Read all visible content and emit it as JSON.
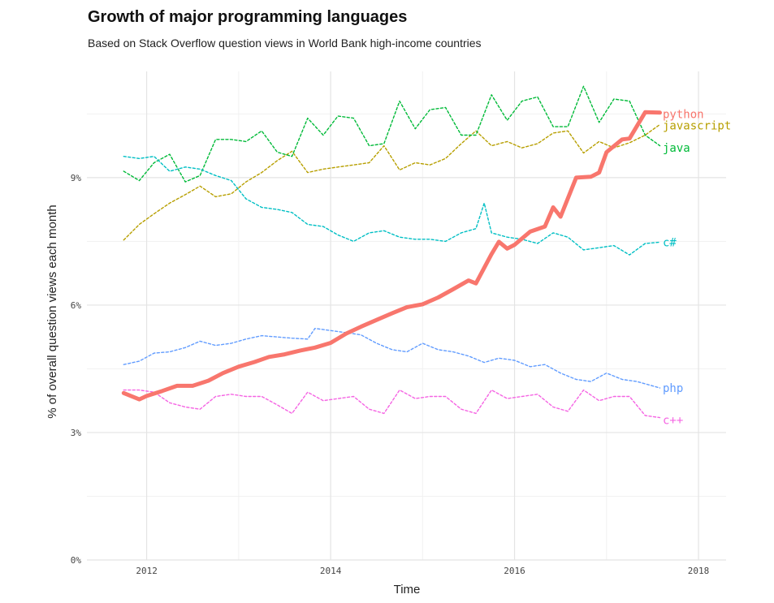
{
  "chart_data": {
    "type": "line",
    "title": "Growth of major programming languages",
    "subtitle": "Based on Stack Overflow question views in World Bank high-income countries",
    "xlabel": "Time",
    "ylabel": "% of overall question views each month",
    "xlim": [
      2011.35,
      2018.3
    ],
    "ylim": [
      0,
      0.115
    ],
    "x_ticks": [
      2012,
      2014,
      2016,
      2018
    ],
    "x_tick_labels": [
      "2012",
      "2014",
      "2016",
      "2018"
    ],
    "y_ticks": [
      0,
      0.03,
      0.06,
      0.09
    ],
    "y_tick_labels": [
      "0%",
      "3%",
      "6%",
      "9%"
    ],
    "grid": true,
    "legend": "direct labels at right end of lines",
    "series": [
      {
        "name": "python",
        "color": "#f8766d",
        "style": "solid-thick",
        "points": [
          [
            2011.75,
            0.0393
          ],
          [
            2011.92,
            0.0378
          ],
          [
            2012.0,
            0.0386
          ],
          [
            2012.17,
            0.0398
          ],
          [
            2012.33,
            0.041
          ],
          [
            2012.5,
            0.041
          ],
          [
            2012.67,
            0.0422
          ],
          [
            2012.83,
            0.044
          ],
          [
            2013.0,
            0.0455
          ],
          [
            2013.17,
            0.0466
          ],
          [
            2013.33,
            0.0478
          ],
          [
            2013.5,
            0.0484
          ],
          [
            2013.67,
            0.0493
          ],
          [
            2013.83,
            0.05
          ],
          [
            2014.0,
            0.0511
          ],
          [
            2014.17,
            0.0533
          ],
          [
            2014.33,
            0.0549
          ],
          [
            2014.5,
            0.0565
          ],
          [
            2014.67,
            0.0581
          ],
          [
            2014.83,
            0.0595
          ],
          [
            2015.0,
            0.0602
          ],
          [
            2015.17,
            0.0618
          ],
          [
            2015.33,
            0.0637
          ],
          [
            2015.5,
            0.0658
          ],
          [
            2015.58,
            0.0651
          ],
          [
            2015.75,
            0.072
          ],
          [
            2015.83,
            0.0749
          ],
          [
            2015.92,
            0.0733
          ],
          [
            2016.0,
            0.0742
          ],
          [
            2016.17,
            0.0773
          ],
          [
            2016.33,
            0.0785
          ],
          [
            2016.42,
            0.083
          ],
          [
            2016.5,
            0.0808
          ],
          [
            2016.67,
            0.09
          ],
          [
            2016.83,
            0.0902
          ],
          [
            2016.92,
            0.0912
          ],
          [
            2017.0,
            0.096
          ],
          [
            2017.17,
            0.099
          ],
          [
            2017.25,
            0.0992
          ],
          [
            2017.42,
            0.1054
          ],
          [
            2017.58,
            0.1053
          ]
        ]
      },
      {
        "name": "javascript",
        "color": "#b79f00",
        "style": "dashed",
        "points": [
          [
            2011.75,
            0.0753
          ],
          [
            2011.92,
            0.079
          ],
          [
            2012.08,
            0.0815
          ],
          [
            2012.25,
            0.084
          ],
          [
            2012.42,
            0.086
          ],
          [
            2012.58,
            0.088
          ],
          [
            2012.75,
            0.0855
          ],
          [
            2012.92,
            0.0862
          ],
          [
            2013.08,
            0.089
          ],
          [
            2013.25,
            0.0912
          ],
          [
            2013.42,
            0.094
          ],
          [
            2013.58,
            0.0962
          ],
          [
            2013.75,
            0.0912
          ],
          [
            2013.92,
            0.092
          ],
          [
            2014.08,
            0.0925
          ],
          [
            2014.25,
            0.093
          ],
          [
            2014.42,
            0.0935
          ],
          [
            2014.58,
            0.0975
          ],
          [
            2014.75,
            0.0918
          ],
          [
            2014.92,
            0.0935
          ],
          [
            2015.08,
            0.093
          ],
          [
            2015.25,
            0.0945
          ],
          [
            2015.42,
            0.098
          ],
          [
            2015.58,
            0.101
          ],
          [
            2015.75,
            0.0975
          ],
          [
            2015.92,
            0.0985
          ],
          [
            2016.08,
            0.097
          ],
          [
            2016.25,
            0.098
          ],
          [
            2016.42,
            0.1005
          ],
          [
            2016.58,
            0.101
          ],
          [
            2016.75,
            0.0958
          ],
          [
            2016.92,
            0.0985
          ],
          [
            2017.08,
            0.097
          ],
          [
            2017.25,
            0.0982
          ],
          [
            2017.42,
            0.1
          ],
          [
            2017.58,
            0.1025
          ]
        ]
      },
      {
        "name": "java",
        "color": "#00ba38",
        "style": "dashed",
        "points": [
          [
            2011.75,
            0.0915
          ],
          [
            2011.92,
            0.0893
          ],
          [
            2012.08,
            0.0935
          ],
          [
            2012.25,
            0.0955
          ],
          [
            2012.42,
            0.089
          ],
          [
            2012.58,
            0.0905
          ],
          [
            2012.75,
            0.099
          ],
          [
            2012.92,
            0.099
          ],
          [
            2013.08,
            0.0985
          ],
          [
            2013.25,
            0.101
          ],
          [
            2013.42,
            0.096
          ],
          [
            2013.58,
            0.095
          ],
          [
            2013.75,
            0.104
          ],
          [
            2013.92,
            0.1
          ],
          [
            2014.08,
            0.1045
          ],
          [
            2014.25,
            0.104
          ],
          [
            2014.42,
            0.0975
          ],
          [
            2014.58,
            0.098
          ],
          [
            2014.75,
            0.108
          ],
          [
            2014.92,
            0.1015
          ],
          [
            2015.08,
            0.106
          ],
          [
            2015.25,
            0.1065
          ],
          [
            2015.42,
            0.1
          ],
          [
            2015.58,
            0.1
          ],
          [
            2015.75,
            0.1095
          ],
          [
            2015.92,
            0.1035
          ],
          [
            2016.08,
            0.108
          ],
          [
            2016.25,
            0.109
          ],
          [
            2016.42,
            0.102
          ],
          [
            2016.58,
            0.102
          ],
          [
            2016.75,
            0.1115
          ],
          [
            2016.92,
            0.103
          ],
          [
            2017.08,
            0.1085
          ],
          [
            2017.25,
            0.108
          ],
          [
            2017.42,
            0.1
          ],
          [
            2017.58,
            0.0975
          ]
        ]
      },
      {
        "name": "c#",
        "color": "#00bfc4",
        "style": "dashed",
        "points": [
          [
            2011.75,
            0.095
          ],
          [
            2011.92,
            0.0945
          ],
          [
            2012.08,
            0.095
          ],
          [
            2012.25,
            0.0915
          ],
          [
            2012.42,
            0.0925
          ],
          [
            2012.58,
            0.092
          ],
          [
            2012.75,
            0.0905
          ],
          [
            2012.92,
            0.0893
          ],
          [
            2013.08,
            0.085
          ],
          [
            2013.25,
            0.083
          ],
          [
            2013.42,
            0.0825
          ],
          [
            2013.58,
            0.0818
          ],
          [
            2013.75,
            0.079
          ],
          [
            2013.92,
            0.0785
          ],
          [
            2014.08,
            0.0765
          ],
          [
            2014.25,
            0.075
          ],
          [
            2014.42,
            0.077
          ],
          [
            2014.58,
            0.0775
          ],
          [
            2014.75,
            0.076
          ],
          [
            2014.92,
            0.0755
          ],
          [
            2015.08,
            0.0755
          ],
          [
            2015.25,
            0.075
          ],
          [
            2015.42,
            0.077
          ],
          [
            2015.58,
            0.078
          ],
          [
            2015.67,
            0.084
          ],
          [
            2015.75,
            0.077
          ],
          [
            2015.92,
            0.076
          ],
          [
            2016.08,
            0.0755
          ],
          [
            2016.25,
            0.0745
          ],
          [
            2016.42,
            0.077
          ],
          [
            2016.58,
            0.076
          ],
          [
            2016.75,
            0.073
          ],
          [
            2016.92,
            0.0735
          ],
          [
            2017.08,
            0.074
          ],
          [
            2017.25,
            0.0718
          ],
          [
            2017.42,
            0.0745
          ],
          [
            2017.58,
            0.0748
          ]
        ]
      },
      {
        "name": "php",
        "color": "#619cff",
        "style": "dashed",
        "points": [
          [
            2011.75,
            0.046
          ],
          [
            2011.92,
            0.0468
          ],
          [
            2012.08,
            0.0487
          ],
          [
            2012.25,
            0.049
          ],
          [
            2012.42,
            0.05
          ],
          [
            2012.58,
            0.0515
          ],
          [
            2012.75,
            0.0505
          ],
          [
            2012.92,
            0.051
          ],
          [
            2013.08,
            0.052
          ],
          [
            2013.25,
            0.0528
          ],
          [
            2013.42,
            0.0525
          ],
          [
            2013.58,
            0.0522
          ],
          [
            2013.75,
            0.052
          ],
          [
            2013.83,
            0.0545
          ],
          [
            2014.0,
            0.054
          ],
          [
            2014.17,
            0.0535
          ],
          [
            2014.33,
            0.053
          ],
          [
            2014.5,
            0.051
          ],
          [
            2014.67,
            0.0495
          ],
          [
            2014.83,
            0.049
          ],
          [
            2015.0,
            0.051
          ],
          [
            2015.17,
            0.0495
          ],
          [
            2015.33,
            0.049
          ],
          [
            2015.5,
            0.048
          ],
          [
            2015.67,
            0.0465
          ],
          [
            2015.83,
            0.0475
          ],
          [
            2016.0,
            0.047
          ],
          [
            2016.17,
            0.0455
          ],
          [
            2016.33,
            0.046
          ],
          [
            2016.5,
            0.044
          ],
          [
            2016.67,
            0.0425
          ],
          [
            2016.83,
            0.042
          ],
          [
            2017.0,
            0.044
          ],
          [
            2017.17,
            0.0425
          ],
          [
            2017.33,
            0.042
          ],
          [
            2017.58,
            0.0405
          ]
        ]
      },
      {
        "name": "c++",
        "color": "#f564e3",
        "style": "dashed",
        "points": [
          [
            2011.75,
            0.04
          ],
          [
            2011.92,
            0.04
          ],
          [
            2012.08,
            0.0395
          ],
          [
            2012.25,
            0.037
          ],
          [
            2012.42,
            0.036
          ],
          [
            2012.58,
            0.0355
          ],
          [
            2012.75,
            0.0385
          ],
          [
            2012.92,
            0.039
          ],
          [
            2013.08,
            0.0385
          ],
          [
            2013.25,
            0.0385
          ],
          [
            2013.42,
            0.0365
          ],
          [
            2013.58,
            0.0345
          ],
          [
            2013.75,
            0.0395
          ],
          [
            2013.92,
            0.0375
          ],
          [
            2014.08,
            0.038
          ],
          [
            2014.25,
            0.0385
          ],
          [
            2014.42,
            0.0355
          ],
          [
            2014.58,
            0.0345
          ],
          [
            2014.75,
            0.04
          ],
          [
            2014.92,
            0.038
          ],
          [
            2015.08,
            0.0385
          ],
          [
            2015.25,
            0.0385
          ],
          [
            2015.42,
            0.0355
          ],
          [
            2015.58,
            0.0345
          ],
          [
            2015.75,
            0.04
          ],
          [
            2015.92,
            0.038
          ],
          [
            2016.08,
            0.0385
          ],
          [
            2016.25,
            0.039
          ],
          [
            2016.42,
            0.036
          ],
          [
            2016.58,
            0.035
          ],
          [
            2016.75,
            0.04
          ],
          [
            2016.92,
            0.0375
          ],
          [
            2017.08,
            0.0385
          ],
          [
            2017.25,
            0.0385
          ],
          [
            2017.42,
            0.034
          ],
          [
            2017.58,
            0.0335
          ]
        ]
      }
    ],
    "series_labels": [
      {
        "text": "python",
        "color": "#f8766d",
        "y": 0.105
      },
      {
        "text": "javascript",
        "color": "#b79f00",
        "y": 0.1023
      },
      {
        "text": "java",
        "color": "#00ba38",
        "y": 0.097
      },
      {
        "text": "c#",
        "color": "#00bfc4",
        "y": 0.0748
      },
      {
        "text": "php",
        "color": "#619cff",
        "y": 0.0405
      },
      {
        "text": "c++",
        "color": "#f564e3",
        "y": 0.033
      }
    ]
  }
}
